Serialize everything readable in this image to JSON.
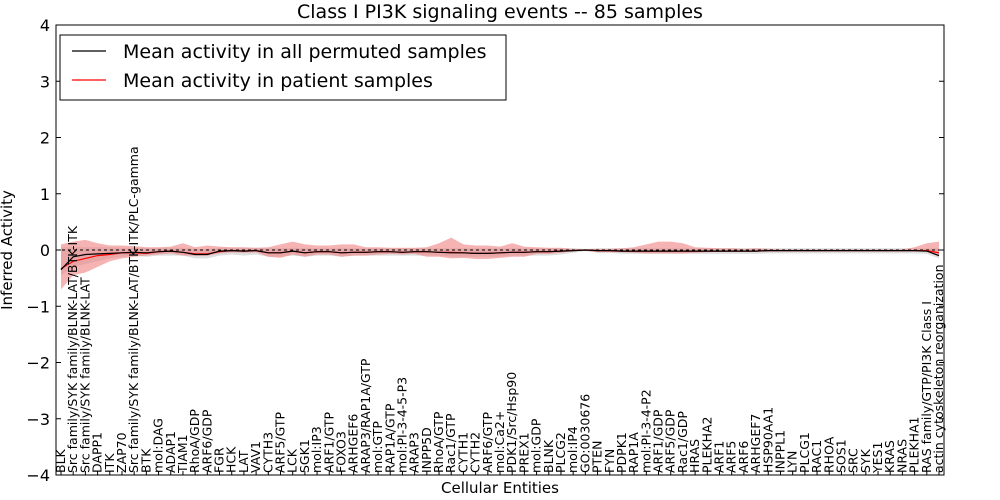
{
  "chart_data": {
    "type": "line",
    "title": "Class I PI3K signaling events -- 85 samples",
    "xlabel": "Cellular Entities",
    "ylabel": "Inferred Activity",
    "ylim": [
      -4,
      4
    ],
    "yticks": [
      -4,
      -3,
      -2,
      -1,
      0,
      1,
      2,
      3,
      4
    ],
    "ytick_labels": [
      "−4",
      "−3",
      "−2",
      "−1",
      "0",
      "1",
      "2",
      "3",
      "4"
    ],
    "legend": {
      "placement": "top-left"
    },
    "colors": {
      "permuted": "#000000",
      "patient": "#ff0000",
      "patient_band": "#f08080",
      "permuted_band": "#c8c8c8"
    },
    "categories": [
      "BLK",
      "Src family/SYK family/BLNK-LAT/BTK-ITK",
      "Src family/SYK family/BLNK-LAT",
      "DAPP1",
      "ITK",
      "ZAP70",
      "Src family/SYK family/BLNK-LAT/BTK-ITK/PLC-gamma",
      "BTK",
      "mol:DAG",
      "ADAP1",
      "TIAM1",
      "RhoA/GDP",
      "ARF6/GDP",
      "FGR",
      "HCK",
      "LAT",
      "VAV1",
      "CYTH3",
      "ARF5/GTP",
      "LCK",
      "SGK1",
      "mol:IP3",
      "ARF1/GTP",
      "FOXO3",
      "ARHGEF6",
      "ARAP3/RAP1A/GTP",
      "mol:GTP",
      "RAP1A/GTP",
      "mol:PI-3-4-5-P3",
      "ARAP3",
      "INPP5D",
      "RhoA/GTP",
      "Rac1/GTP",
      "CYTH1",
      "CYTH2",
      "ARF6/GTP",
      "mol:Ca2+",
      "PDK1/Src/Hsp90",
      "PREX1",
      "mol:GDP",
      "BLNK",
      "PLCG2",
      "mol:IP4",
      "GO:0030676",
      "PTEN",
      "FYN",
      "PDPK1",
      "RAP1A",
      "mol:PI-3-4-P2",
      "ARF1/GDP",
      "ARF5/GDP",
      "Rac1/GDP",
      "HRAS",
      "PLEKHA2",
      "ARF1",
      "ARF5",
      "ARF6",
      "ARHGEF7",
      "HSP90AA1",
      "INPPL1",
      "LYN",
      "PLCG1",
      "RAC1",
      "RHOA",
      "SOS1",
      "SRC",
      "SYK",
      "YES1",
      "KRAS",
      "NRAS",
      "PLEKHA1",
      "RAS family/GTP/PI3K Class I",
      "actin cytoskeleton reorganization"
    ],
    "series": [
      {
        "name": "Mean activity in all permuted samples",
        "color": "#000000",
        "values": [
          -0.35,
          -0.12,
          -0.08,
          -0.07,
          -0.06,
          -0.05,
          -0.04,
          -0.05,
          -0.03,
          -0.02,
          -0.04,
          -0.08,
          -0.08,
          -0.02,
          -0.01,
          -0.02,
          -0.01,
          -0.05,
          -0.05,
          -0.02,
          -0.05,
          -0.03,
          -0.03,
          -0.05,
          -0.04,
          -0.04,
          -0.03,
          -0.03,
          -0.04,
          -0.03,
          -0.03,
          -0.04,
          -0.05,
          -0.05,
          -0.06,
          -0.06,
          -0.05,
          -0.04,
          -0.04,
          -0.03,
          -0.03,
          -0.02,
          -0.01,
          0.0,
          -0.01,
          -0.01,
          -0.02,
          -0.02,
          -0.02,
          -0.02,
          -0.02,
          -0.02,
          -0.02,
          -0.02,
          -0.02,
          -0.02,
          -0.02,
          -0.02,
          -0.01,
          -0.01,
          -0.01,
          -0.01,
          -0.01,
          -0.01,
          -0.01,
          -0.01,
          -0.01,
          -0.01,
          -0.01,
          -0.01,
          -0.01,
          -0.02,
          -0.1
        ],
        "lower": [
          -0.45,
          -0.3,
          -0.25,
          -0.2,
          -0.15,
          -0.12,
          -0.1,
          -0.12,
          -0.1,
          -0.1,
          -0.1,
          -0.15,
          -0.15,
          -0.1,
          -0.08,
          -0.1,
          -0.08,
          -0.12,
          -0.12,
          -0.1,
          -0.12,
          -0.1,
          -0.1,
          -0.12,
          -0.1,
          -0.1,
          -0.1,
          -0.1,
          -0.1,
          -0.1,
          -0.1,
          -0.1,
          -0.12,
          -0.12,
          -0.12,
          -0.12,
          -0.12,
          -0.1,
          -0.1,
          -0.1,
          -0.1,
          -0.08,
          -0.05,
          -0.02,
          -0.05,
          -0.05,
          -0.07,
          -0.07,
          -0.07,
          -0.07,
          -0.07,
          -0.07,
          -0.07,
          -0.07,
          -0.07,
          -0.07,
          -0.07,
          -0.07,
          -0.06,
          -0.06,
          -0.06,
          -0.06,
          -0.06,
          -0.06,
          -0.06,
          -0.06,
          -0.06,
          -0.06,
          -0.06,
          -0.06,
          -0.06,
          -0.07,
          -0.15
        ],
        "upper": [
          0.05,
          0.05,
          0.05,
          0.05,
          0.05,
          0.04,
          0.04,
          0.04,
          0.04,
          0.04,
          0.04,
          0.02,
          0.02,
          0.04,
          0.04,
          0.04,
          0.04,
          0.03,
          0.03,
          0.04,
          0.03,
          0.03,
          0.03,
          0.03,
          0.03,
          0.03,
          0.03,
          0.03,
          0.03,
          0.03,
          0.03,
          0.03,
          0.03,
          0.03,
          0.03,
          0.03,
          0.03,
          0.03,
          0.03,
          0.03,
          0.03,
          0.03,
          0.03,
          0.02,
          0.03,
          0.03,
          0.03,
          0.03,
          0.03,
          0.03,
          0.03,
          0.03,
          0.03,
          0.03,
          0.03,
          0.03,
          0.03,
          0.03,
          0.03,
          0.03,
          0.03,
          0.03,
          0.03,
          0.03,
          0.03,
          0.03,
          0.03,
          0.03,
          0.03,
          0.03,
          0.03,
          0.03,
          0.03
        ]
      },
      {
        "name": "Mean activity in patient samples",
        "color": "#ff0000",
        "values": [
          -0.33,
          -0.2,
          -0.15,
          -0.1,
          -0.08,
          -0.05,
          -0.05,
          -0.06,
          -0.03,
          -0.02,
          -0.04,
          -0.07,
          -0.07,
          -0.03,
          -0.01,
          -0.02,
          -0.01,
          -0.05,
          -0.05,
          -0.02,
          -0.05,
          -0.03,
          -0.03,
          -0.05,
          -0.04,
          -0.04,
          -0.03,
          -0.03,
          -0.04,
          -0.03,
          -0.03,
          -0.04,
          -0.04,
          -0.05,
          -0.06,
          -0.06,
          -0.05,
          -0.04,
          -0.04,
          -0.03,
          -0.03,
          -0.02,
          -0.01,
          0.0,
          -0.01,
          -0.01,
          -0.02,
          -0.02,
          -0.02,
          -0.02,
          -0.02,
          -0.02,
          -0.02,
          -0.02,
          -0.02,
          -0.02,
          -0.02,
          -0.02,
          -0.01,
          -0.01,
          -0.01,
          -0.01,
          -0.01,
          -0.01,
          -0.01,
          -0.01,
          -0.01,
          -0.01,
          -0.01,
          -0.01,
          -0.01,
          -0.01,
          -0.05
        ],
        "lower": [
          -0.7,
          -0.45,
          -0.4,
          -0.3,
          -0.2,
          -0.15,
          -0.12,
          -0.1,
          -0.08,
          -0.06,
          -0.1,
          -0.1,
          -0.1,
          -0.06,
          -0.04,
          -0.05,
          -0.04,
          -0.12,
          -0.14,
          -0.08,
          -0.12,
          -0.08,
          -0.08,
          -0.12,
          -0.1,
          -0.1,
          -0.08,
          -0.07,
          -0.08,
          -0.07,
          -0.12,
          -0.12,
          -0.15,
          -0.14,
          -0.16,
          -0.16,
          -0.14,
          -0.12,
          -0.12,
          -0.07,
          -0.07,
          -0.05,
          -0.02,
          -0.01,
          -0.04,
          -0.04,
          -0.04,
          -0.05,
          -0.06,
          -0.06,
          -0.06,
          -0.06,
          -0.05,
          -0.04,
          -0.03,
          -0.03,
          -0.02,
          -0.02,
          -0.02,
          -0.01,
          -0.01,
          -0.01,
          -0.01,
          -0.01,
          -0.01,
          -0.01,
          -0.01,
          -0.01,
          -0.01,
          -0.01,
          -0.01,
          -0.02,
          -0.12
        ],
        "upper": [
          0.1,
          0.15,
          0.18,
          0.12,
          0.08,
          0.08,
          0.07,
          0.05,
          0.05,
          0.06,
          0.12,
          0.05,
          0.08,
          0.06,
          0.05,
          0.05,
          0.04,
          0.05,
          0.1,
          0.15,
          0.1,
          0.08,
          0.08,
          0.1,
          0.1,
          0.05,
          0.05,
          0.04,
          0.04,
          0.04,
          0.05,
          0.12,
          0.22,
          0.1,
          0.08,
          0.08,
          0.06,
          0.12,
          0.06,
          0.05,
          0.04,
          0.04,
          0.02,
          0.01,
          0.02,
          0.02,
          0.03,
          0.05,
          0.1,
          0.15,
          0.15,
          0.12,
          0.05,
          0.04,
          0.03,
          0.03,
          0.02,
          0.03,
          0.02,
          0.01,
          0.01,
          0.01,
          0.01,
          0.01,
          0.01,
          0.01,
          0.01,
          0.01,
          0.01,
          0.01,
          0.05,
          0.12,
          0.15
        ]
      }
    ]
  }
}
